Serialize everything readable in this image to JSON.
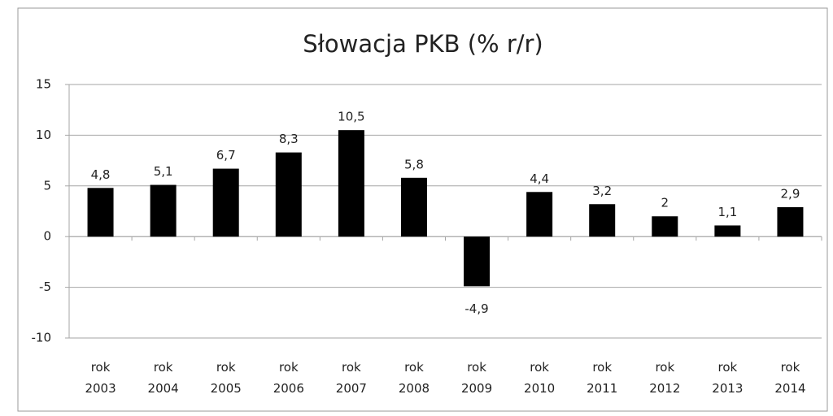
{
  "chart_data": {
    "type": "bar",
    "title": "Słowacja PKB (% r/r)",
    "categories": [
      "rok 2003",
      "rok 2004",
      "rok 2005",
      "rok 2006",
      "rok 2007",
      "rok 2008",
      "rok 2009",
      "rok 2010",
      "rok 2011",
      "rok 2012",
      "rok 2013",
      "rok 2014"
    ],
    "values": [
      4.8,
      5.1,
      6.7,
      8.3,
      10.5,
      5.8,
      -4.9,
      4.4,
      3.2,
      2,
      1.1,
      2.9
    ],
    "value_labels": [
      "4,8",
      "5,1",
      "6,7",
      "8,3",
      "10,5",
      "5,8",
      "-4,9",
      "4,4",
      "3,2",
      "2",
      "1,1",
      "2,9"
    ],
    "color": "#000000",
    "ylim": [
      -10,
      15
    ],
    "yticks": [
      -10,
      -5,
      0,
      5,
      10,
      15
    ],
    "grid": true
  }
}
